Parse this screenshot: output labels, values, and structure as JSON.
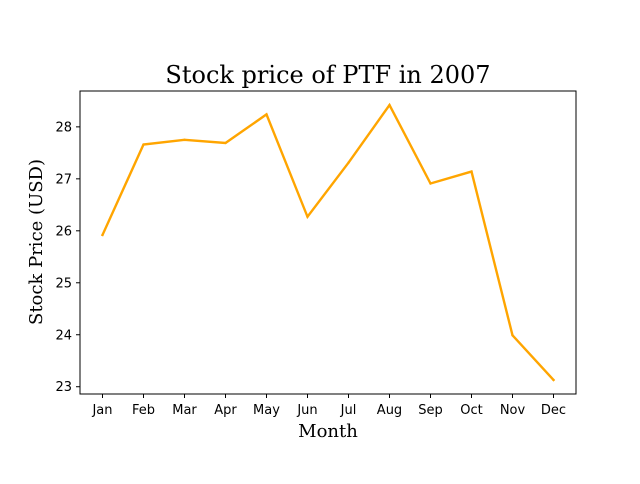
{
  "chart_data": {
    "type": "line",
    "title": "Stock price of PTF in 2007",
    "xlabel": "Month",
    "ylabel": "Stock Price (USD)",
    "categories": [
      "Jan",
      "Feb",
      "Mar",
      "Apr",
      "May",
      "Jun",
      "Jul",
      "Aug",
      "Sep",
      "Oct",
      "Nov",
      "Dec"
    ],
    "series": [
      {
        "values": [
          25.92,
          27.66,
          27.75,
          27.69,
          28.24,
          26.27,
          27.31,
          28.42,
          26.91,
          27.14,
          23.99,
          23.13
        ]
      }
    ],
    "ylim": [
      22.86,
      28.69
    ],
    "yticks": [
      23,
      24,
      25,
      26,
      27,
      28
    ],
    "grid": false,
    "legend": "none",
    "line_color": "#FFA500"
  }
}
